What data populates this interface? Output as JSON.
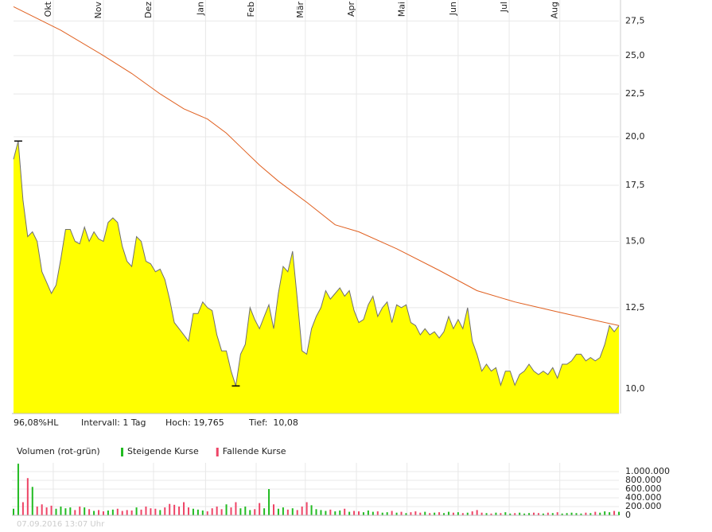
{
  "chart_data": [
    {
      "type": "area-line",
      "log_y": true,
      "grid": true,
      "xlim": [
        0,
        128
      ],
      "ylim": [
        9.344,
        29.13
      ],
      "xticks": [
        {
          "value": 8.4,
          "label": "Okt"
        },
        {
          "value": 19.0,
          "label": "Nov"
        },
        {
          "value": 29.6,
          "label": "Dez"
        },
        {
          "value": 40.6,
          "label": "Jan"
        },
        {
          "value": 51.3,
          "label": "Feb"
        },
        {
          "value": 61.7,
          "label": "Mär"
        },
        {
          "value": 72.5,
          "label": "Apr"
        },
        {
          "value": 83.2,
          "label": "Mai"
        },
        {
          "value": 94.0,
          "label": "Jun"
        },
        {
          "value": 104.8,
          "label": "Jul"
        },
        {
          "value": 115.5,
          "label": "Aug"
        }
      ],
      "yticks": [
        {
          "value": 10,
          "label": "10,0"
        },
        {
          "value": 12.5,
          "label": "12,5"
        },
        {
          "value": 15,
          "label": "15,0"
        },
        {
          "value": 17.5,
          "label": "17,5"
        },
        {
          "value": 20,
          "label": "20,0"
        },
        {
          "value": 22.5,
          "label": "22,5"
        },
        {
          "value": 25,
          "label": "25,0"
        },
        {
          "value": 27.5,
          "label": "27,5"
        }
      ],
      "series": [
        {
          "color": "#ffff00",
          "line_color": "#707070",
          "values": [
            18.8,
            19.765,
            16.8,
            15.2,
            15.4,
            15.0,
            13.8,
            13.4,
            13.0,
            13.3,
            14.3,
            15.5,
            15.5,
            15.0,
            14.9,
            15.6,
            15.0,
            15.4,
            15.1,
            15.0,
            15.8,
            16.0,
            15.8,
            14.8,
            14.2,
            14.0,
            15.2,
            15.0,
            14.2,
            14.1,
            13.8,
            13.9,
            13.5,
            12.8,
            12.0,
            11.8,
            11.6,
            11.4,
            12.3,
            12.3,
            12.7,
            12.5,
            12.4,
            11.6,
            11.1,
            11.1,
            10.5,
            10.08,
            11.0,
            11.3,
            12.5,
            12.1,
            11.8,
            12.2,
            12.6,
            11.8,
            13.0,
            14.0,
            13.8,
            14.6,
            12.8,
            11.1,
            11.0,
            11.8,
            12.2,
            12.5,
            13.1,
            12.8,
            13.0,
            13.2,
            12.9,
            13.1,
            12.4,
            12.0,
            12.1,
            12.6,
            12.9,
            12.2,
            12.5,
            12.7,
            12.0,
            12.6,
            12.5,
            12.6,
            12.0,
            11.9,
            11.6,
            11.8,
            11.6,
            11.7,
            11.5,
            11.7,
            12.2,
            11.8,
            12.1,
            11.8,
            12.5,
            11.4,
            11.0,
            10.5,
            10.7,
            10.5,
            10.6,
            10.1,
            10.5,
            10.5,
            10.1,
            10.4,
            10.5,
            10.7,
            10.5,
            10.4,
            10.5,
            10.4,
            10.6,
            10.3,
            10.7,
            10.7,
            10.8,
            11.0,
            11.0,
            10.8,
            10.9,
            10.8,
            10.9,
            11.3,
            11.9,
            11.7,
            11.9
          ]
        },
        {
          "color": "#e06020",
          "x": [
            0,
            10,
            19,
            25,
            31,
            36,
            41,
            45,
            48,
            52,
            56,
            62,
            68,
            73,
            81,
            90,
            98,
            106,
            115,
            123,
            128
          ],
          "values": [
            28.6,
            26.8,
            25.0,
            23.8,
            22.5,
            21.6,
            21.0,
            20.2,
            19.45,
            18.5,
            17.7,
            16.7,
            15.7,
            15.4,
            14.7,
            13.85,
            13.1,
            12.7,
            12.36,
            12.07,
            11.9
          ]
        }
      ],
      "annotations": [
        "96,08%HL",
        "Intervall: 1 Tag",
        "Hoch: 19,765",
        "Tief:  10,08"
      ]
    },
    {
      "type": "bar",
      "title": "Volumen (rot-grün)",
      "legend": [
        {
          "name": "Steigende Kurse",
          "color": "#22bb22"
        },
        {
          "name": "Fallende Kurse",
          "color": "#ee4466"
        }
      ],
      "xlim": [
        0,
        128
      ],
      "ylim": [
        0,
        1200000
      ],
      "grid": true,
      "yticks": [
        {
          "value": 0,
          "label": "0"
        },
        {
          "value": 200000,
          "label": "200.000"
        },
        {
          "value": 400000,
          "label": "400.000"
        },
        {
          "value": 600000,
          "label": "600.000"
        },
        {
          "value": 800000,
          "label": "800.000"
        },
        {
          "value": 1000000,
          "label": "1.000.000"
        }
      ],
      "values": [
        150000,
        1180000,
        300000,
        850000,
        650000,
        200000,
        250000,
        180000,
        220000,
        150000,
        200000,
        160000,
        180000,
        120000,
        200000,
        180000,
        140000,
        100000,
        120000,
        90000,
        110000,
        130000,
        150000,
        100000,
        120000,
        110000,
        180000,
        130000,
        200000,
        160000,
        150000,
        120000,
        180000,
        260000,
        240000,
        200000,
        300000,
        180000,
        150000,
        130000,
        110000,
        90000,
        160000,
        200000,
        140000,
        250000,
        180000,
        300000,
        160000,
        200000,
        120000,
        140000,
        280000,
        160000,
        600000,
        250000,
        150000,
        180000,
        130000,
        160000,
        120000,
        200000,
        300000,
        230000,
        140000,
        120000,
        100000,
        130000,
        90000,
        110000,
        150000,
        80000,
        100000,
        90000,
        70000,
        110000,
        80000,
        90000,
        60000,
        70000,
        100000,
        60000,
        80000,
        50000,
        70000,
        90000,
        60000,
        80000,
        50000,
        60000,
        70000,
        50000,
        80000,
        60000,
        70000,
        50000,
        60000,
        90000,
        120000,
        60000,
        50000,
        40000,
        60000,
        50000,
        70000,
        40000,
        50000,
        60000,
        40000,
        50000,
        60000,
        50000,
        40000,
        60000,
        50000,
        70000,
        40000,
        50000,
        60000,
        50000,
        40000,
        60000,
        50000,
        80000,
        60000,
        90000,
        70000,
        100000,
        80000
      ]
    }
  ],
  "footer": "07.09.2016 13:07 Uhr"
}
